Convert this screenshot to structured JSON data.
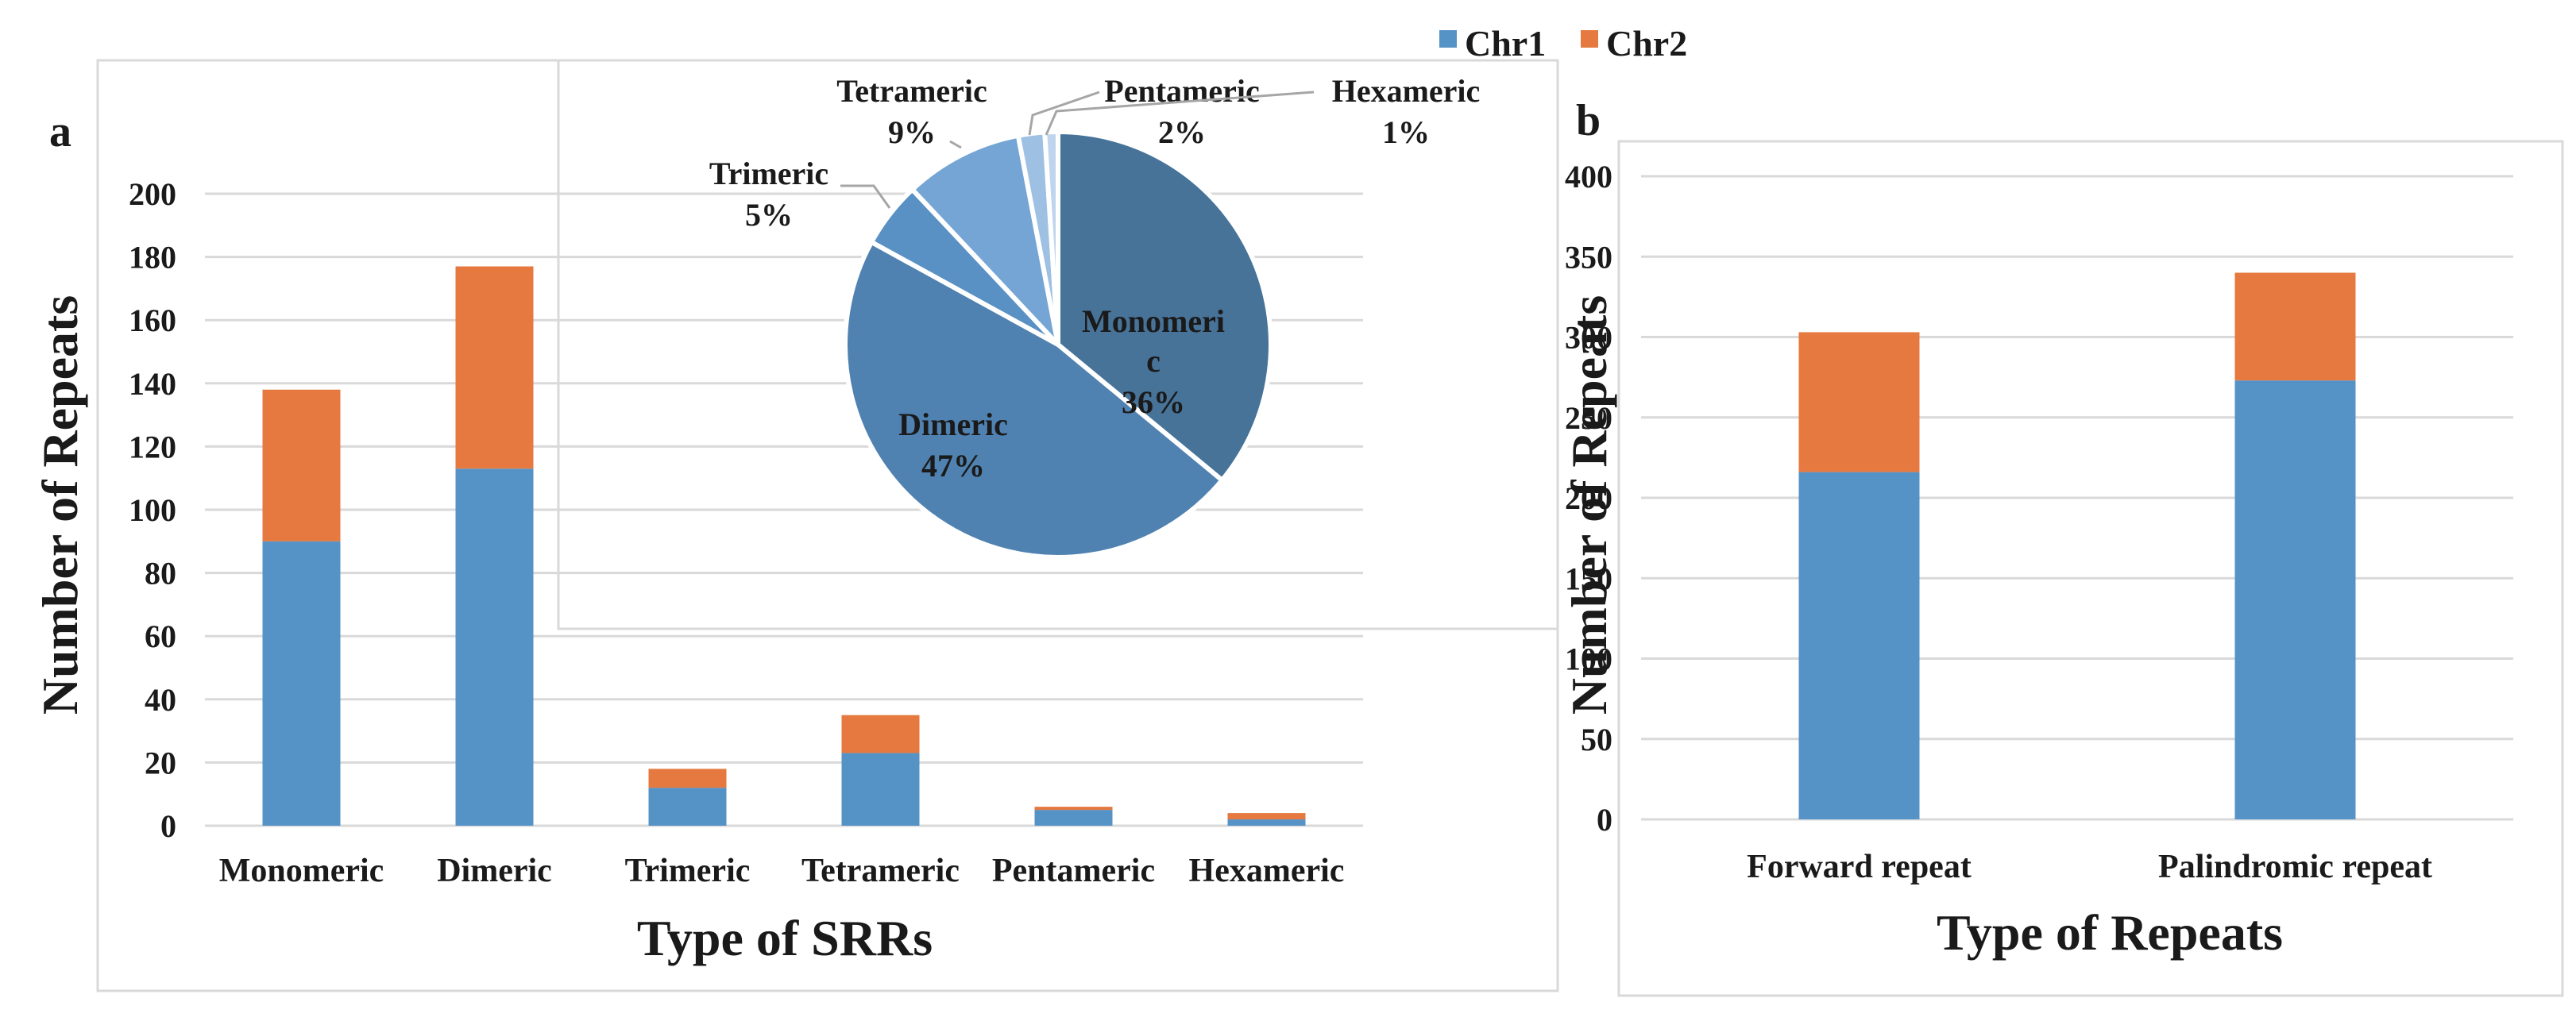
{
  "legend": {
    "items": [
      {
        "name": "Chr1",
        "color": "#5593c7"
      },
      {
        "name": "Chr2",
        "color": "#e5793f"
      }
    ]
  },
  "chart_data": [
    {
      "panel": "a",
      "type": "bar",
      "stacked": true,
      "title": "",
      "xlabel": "Type of SRRs",
      "ylabel": "Number of Repeats",
      "categories": [
        "Monomeric",
        "Dimeric",
        "Trimeric",
        "Tetrameric",
        "Pentameric",
        "Hexameric"
      ],
      "series": [
        {
          "name": "Chr1",
          "values": [
            90,
            113,
            12,
            23,
            5,
            2
          ]
        },
        {
          "name": "Chr2",
          "values": [
            48,
            64,
            6,
            12,
            1,
            2
          ]
        }
      ],
      "ylim": [
        0,
        200
      ],
      "yticks": [
        0,
        20,
        40,
        60,
        80,
        100,
        120,
        140,
        160,
        180,
        200
      ],
      "grid": true
    },
    {
      "panel": "a-inset",
      "type": "pie",
      "slices": [
        {
          "label": "Monomeric",
          "label_lines": [
            "Monomeri",
            "c"
          ],
          "value": 36,
          "percent_text": "36%",
          "color": "#477399"
        },
        {
          "label": "Dimeric",
          "label_lines": [
            "Dimeric"
          ],
          "value": 47,
          "percent_text": "47%",
          "color": "#5082b1"
        },
        {
          "label": "Trimeric",
          "label_lines": [
            "Trimeric"
          ],
          "value": 5,
          "percent_text": "5%",
          "color": "#5991c4"
        },
        {
          "label": "Tetrameric",
          "label_lines": [
            "Tetrameric"
          ],
          "value": 9,
          "percent_text": "9%",
          "color": "#74a5d4"
        },
        {
          "label": "Pentameric",
          "label_lines": [
            "Pentameric"
          ],
          "value": 2,
          "percent_text": "2%",
          "color": "#9dc0e3"
        },
        {
          "label": "Hexameric",
          "label_lines": [
            "Hexameric"
          ],
          "value": 1,
          "percent_text": "1%",
          "color": "#bfd5ee"
        }
      ]
    },
    {
      "panel": "b",
      "type": "bar",
      "stacked": true,
      "title": "",
      "xlabel": "Type of Repeats",
      "ylabel": "Number of Repeats",
      "categories": [
        "Forward repeat",
        "Palindromic repeat"
      ],
      "series": [
        {
          "name": "Chr1",
          "values": [
            216,
            273
          ]
        },
        {
          "name": "Chr2",
          "values": [
            87,
            67
          ]
        }
      ],
      "ylim": [
        0,
        400
      ],
      "yticks": [
        0,
        50,
        100,
        150,
        200,
        250,
        300,
        350,
        400
      ],
      "grid": true
    }
  ]
}
